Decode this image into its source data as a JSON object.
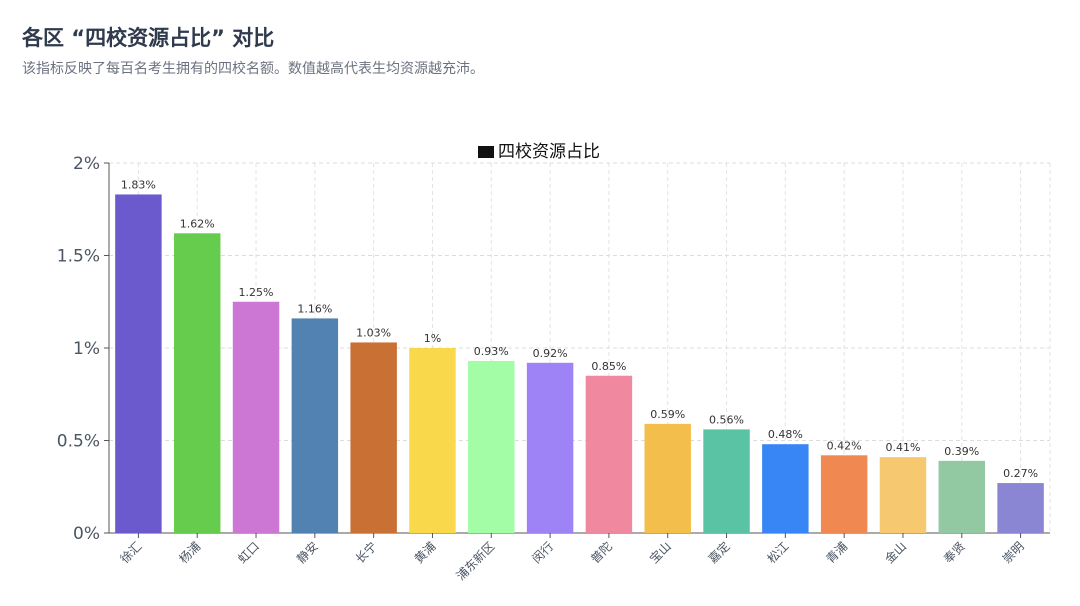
{
  "header": {
    "title": "各区 “四校资源占比” 对比",
    "subtitle": "该指标反映了每百名考生拥有的四校名额。数值越高代表生均资源越充沛。"
  },
  "chart_data": {
    "type": "bar",
    "title": "",
    "legend": {
      "label": "四校资源占比",
      "position": "top-center"
    },
    "xlabel": "",
    "ylabel": "",
    "ylim": [
      0,
      2
    ],
    "yticks": [
      "0%",
      "0.5%",
      "1%",
      "1.5%",
      "2%"
    ],
    "grid": true,
    "categories": [
      "徐汇",
      "杨浦",
      "虹口",
      "静安",
      "长宁",
      "黄浦",
      "浦东新区",
      "闵行",
      "普陀",
      "宝山",
      "嘉定",
      "松江",
      "青浦",
      "金山",
      "奉贤",
      "崇明"
    ],
    "values": [
      1.83,
      1.62,
      1.25,
      1.16,
      1.03,
      1.0,
      0.93,
      0.92,
      0.85,
      0.59,
      0.56,
      0.48,
      0.42,
      0.41,
      0.39,
      0.27
    ],
    "value_labels": [
      "1.83%",
      "1.62%",
      "1.25%",
      "1.16%",
      "1.03%",
      "1%",
      "0.93%",
      "0.92%",
      "0.85%",
      "0.59%",
      "0.56%",
      "0.48%",
      "0.42%",
      "0.41%",
      "0.39%",
      "0.27%"
    ],
    "colors": [
      "#6a5acd",
      "#66cc4d",
      "#cc77d4",
      "#5282b1",
      "#c97134",
      "#f9d84b",
      "#a3fda7",
      "#9e83f7",
      "#f088a0",
      "#f3be4b",
      "#5ac3a3",
      "#3886f6",
      "#ef8951",
      "#f6c870",
      "#93c9a2",
      "#8b86d3"
    ]
  }
}
